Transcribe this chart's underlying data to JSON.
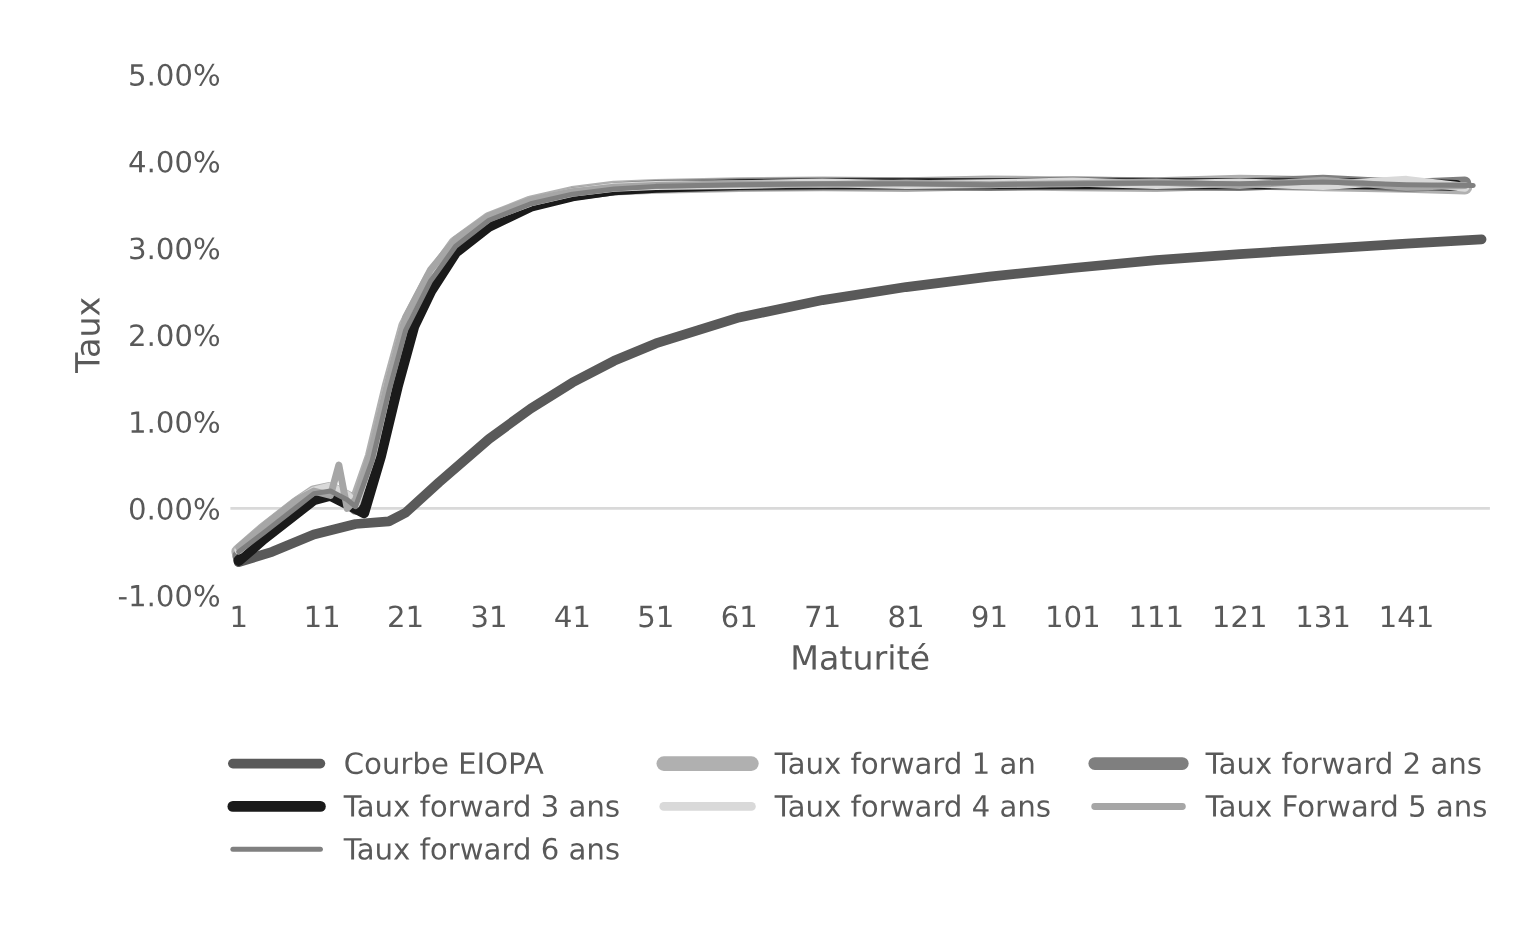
{
  "chart_data": {
    "type": "line",
    "xlabel": "Maturité",
    "ylabel": "Taux",
    "xlim": [
      0,
      151
    ],
    "xticks": [
      1,
      11,
      21,
      31,
      41,
      51,
      61,
      71,
      81,
      91,
      101,
      111,
      121,
      131,
      141
    ],
    "ylim": [
      -1,
      5
    ],
    "yticks": [
      {
        "value": -1,
        "label": "-1.00%"
      },
      {
        "value": 0,
        "label": "0.00%"
      },
      {
        "value": 1,
        "label": "1.00%"
      },
      {
        "value": 2,
        "label": "2.00%"
      },
      {
        "value": 3,
        "label": "3.00%"
      },
      {
        "value": 4,
        "label": "4.00%"
      },
      {
        "value": 5,
        "label": "5.00%"
      }
    ],
    "grid": false,
    "legend": "bottom",
    "marker": "none",
    "line_style": "solid",
    "ref_lines": [
      {
        "axis": "y",
        "value": 0,
        "color": "#d9d9d9"
      }
    ],
    "series": [
      {
        "name": "Courbe EIOPA",
        "color": "#595959",
        "x": [
          1,
          5,
          10,
          15,
          19,
          21,
          25,
          31,
          36,
          41,
          46,
          51,
          56,
          61,
          71,
          81,
          91,
          101,
          111,
          121,
          131,
          141,
          150
        ],
        "values": [
          -0.62,
          -0.5,
          -0.3,
          -0.18,
          -0.15,
          -0.05,
          0.3,
          0.8,
          1.15,
          1.45,
          1.7,
          1.9,
          2.05,
          2.2,
          2.4,
          2.55,
          2.67,
          2.77,
          2.86,
          2.93,
          2.99,
          3.05,
          3.1
        ]
      },
      {
        "name": "Taux forward 1 an",
        "color": "#b0b0b0",
        "x": [
          1,
          4,
          8,
          10,
          12,
          14,
          15,
          17,
          19,
          21,
          24,
          27,
          31,
          36,
          41,
          46,
          51,
          61,
          71,
          81,
          91,
          101,
          111,
          121,
          131,
          141,
          148
        ],
        "values": [
          -0.5,
          -0.25,
          0.05,
          0.18,
          0.22,
          0.12,
          0.05,
          0.6,
          1.4,
          2.1,
          2.65,
          3.05,
          3.33,
          3.52,
          3.63,
          3.69,
          3.71,
          3.73,
          3.74,
          3.73,
          3.75,
          3.74,
          3.73,
          3.76,
          3.74,
          3.72,
          3.7
        ]
      },
      {
        "name": "Taux forward 2 ans",
        "color": "#7f7f7f",
        "x": [
          1,
          4,
          8,
          10,
          12,
          14,
          15,
          17,
          19,
          21,
          24,
          27,
          31,
          36,
          41,
          46,
          51,
          61,
          71,
          81,
          91,
          101,
          111,
          121,
          131,
          141,
          148
        ],
        "values": [
          -0.55,
          -0.3,
          0.0,
          0.15,
          0.2,
          0.1,
          0.0,
          0.5,
          1.3,
          2.0,
          2.6,
          3.0,
          3.3,
          3.5,
          3.62,
          3.68,
          3.71,
          3.73,
          3.74,
          3.74,
          3.73,
          3.75,
          3.74,
          3.73,
          3.77,
          3.72,
          3.75
        ]
      },
      {
        "name": "Taux forward 3 ans",
        "color": "#1a1a1a",
        "x": [
          1,
          4,
          8,
          10,
          12,
          14,
          16,
          18,
          20,
          22,
          24,
          27,
          31,
          36,
          41,
          46,
          51,
          61,
          71,
          81,
          91,
          101,
          111,
          121,
          131,
          141,
          147
        ],
        "values": [
          -0.6,
          -0.35,
          -0.05,
          0.1,
          0.15,
          0.05,
          -0.05,
          0.6,
          1.4,
          2.1,
          2.5,
          2.95,
          3.25,
          3.48,
          3.6,
          3.67,
          3.7,
          3.73,
          3.74,
          3.74,
          3.74,
          3.74,
          3.74,
          3.74,
          3.74,
          3.74,
          3.72
        ]
      },
      {
        "name": "Taux forward 4 ans",
        "color": "#d9d9d9",
        "x": [
          1,
          4,
          8,
          10,
          12,
          14,
          15,
          17,
          19,
          21,
          24,
          27,
          31,
          36,
          41,
          46,
          51,
          61,
          71,
          81,
          91,
          101,
          111,
          121,
          131,
          141,
          148
        ],
        "values": [
          -0.48,
          -0.22,
          0.08,
          0.2,
          0.25,
          0.15,
          0.05,
          0.62,
          1.45,
          2.15,
          2.7,
          3.08,
          3.35,
          3.53,
          3.64,
          3.7,
          3.72,
          3.73,
          3.75,
          3.73,
          3.74,
          3.76,
          3.73,
          3.75,
          3.72,
          3.78,
          3.7
        ]
      },
      {
        "name": "Taux Forward 5 ans",
        "color": "#a6a6a6",
        "x": [
          1,
          4,
          8,
          10,
          12,
          13,
          14,
          15,
          17,
          19,
          21,
          24,
          27,
          31,
          36,
          41,
          46,
          51,
          61,
          71,
          81,
          91,
          101,
          111,
          121,
          131,
          141,
          148
        ],
        "values": [
          -0.45,
          -0.2,
          0.1,
          0.2,
          0.15,
          0.5,
          0.0,
          0.1,
          0.7,
          1.5,
          2.2,
          2.75,
          3.1,
          3.37,
          3.55,
          3.65,
          3.7,
          3.72,
          3.74,
          3.73,
          3.75,
          3.73,
          3.74,
          3.76,
          3.72,
          3.78,
          3.7,
          3.72
        ]
      },
      {
        "name": "Taux forward 6 ans",
        "color": "#808080",
        "x": [
          1,
          4,
          8,
          10,
          12,
          14,
          15,
          17,
          19,
          21,
          24,
          27,
          31,
          36,
          41,
          46,
          51,
          61,
          71,
          81,
          91,
          101,
          111,
          121,
          131,
          141,
          149
        ],
        "values": [
          -0.5,
          -0.28,
          0.02,
          0.17,
          0.2,
          0.1,
          0.02,
          0.55,
          1.35,
          2.05,
          2.62,
          3.02,
          3.32,
          3.51,
          3.62,
          3.68,
          3.71,
          3.73,
          3.74,
          3.74,
          3.73,
          3.74,
          3.75,
          3.74,
          3.76,
          3.73,
          3.72
        ]
      }
    ]
  }
}
